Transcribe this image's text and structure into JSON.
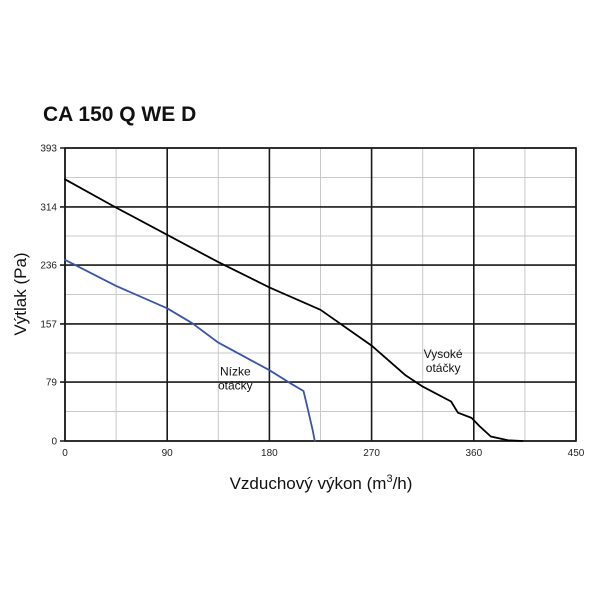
{
  "chart_data": {
    "type": "line",
    "title": "CA 150 Q WE D",
    "xlabel": "Vzduchový výkon (m",
    "xlabel_sup": "3",
    "xlabel_end": "/h)",
    "ylabel": "Výtlak (Pa)",
    "xlim": [
      0,
      450
    ],
    "ylim": [
      0,
      393
    ],
    "x_ticks": [
      "0",
      "90",
      "180",
      "270",
      "360",
      "450"
    ],
    "x_tick_values": [
      0,
      90,
      180,
      270,
      360,
      450
    ],
    "y_ticks": [
      "0",
      "79",
      "157",
      "236",
      "314",
      "393"
    ],
    "y_tick_values": [
      0,
      79,
      157,
      236,
      314,
      393
    ],
    "x_minor_step": 45,
    "grid": true,
    "series": [
      {
        "name": "Vysoké otáčky",
        "color": "#000000",
        "points": [
          [
            0,
            351
          ],
          [
            45,
            313
          ],
          [
            135,
            240
          ],
          [
            180,
            206
          ],
          [
            225,
            176
          ],
          [
            270,
            128
          ],
          [
            300,
            88
          ],
          [
            315,
            73
          ],
          [
            340,
            53
          ],
          [
            346,
            38
          ],
          [
            358,
            31
          ],
          [
            365,
            20
          ],
          [
            375,
            6
          ],
          [
            390,
            1
          ],
          [
            403,
            0
          ]
        ]
      },
      {
        "name": "Nízke otáčky",
        "color": "#3a55a6",
        "points": [
          [
            0,
            243
          ],
          [
            45,
            208
          ],
          [
            90,
            178
          ],
          [
            112,
            158
          ],
          [
            135,
            132
          ],
          [
            180,
            95
          ],
          [
            200,
            76
          ],
          [
            210,
            67
          ],
          [
            213,
            48
          ],
          [
            218,
            15
          ],
          [
            220,
            0
          ]
        ]
      }
    ],
    "annotations": [
      {
        "id": "high",
        "lines": [
          "Vysoké",
          "otáčky"
        ],
        "x": 333,
        "y": 111
      },
      {
        "id": "low",
        "lines": [
          "Nízke",
          "otáčky"
        ],
        "x": 150,
        "y": 88
      }
    ]
  }
}
